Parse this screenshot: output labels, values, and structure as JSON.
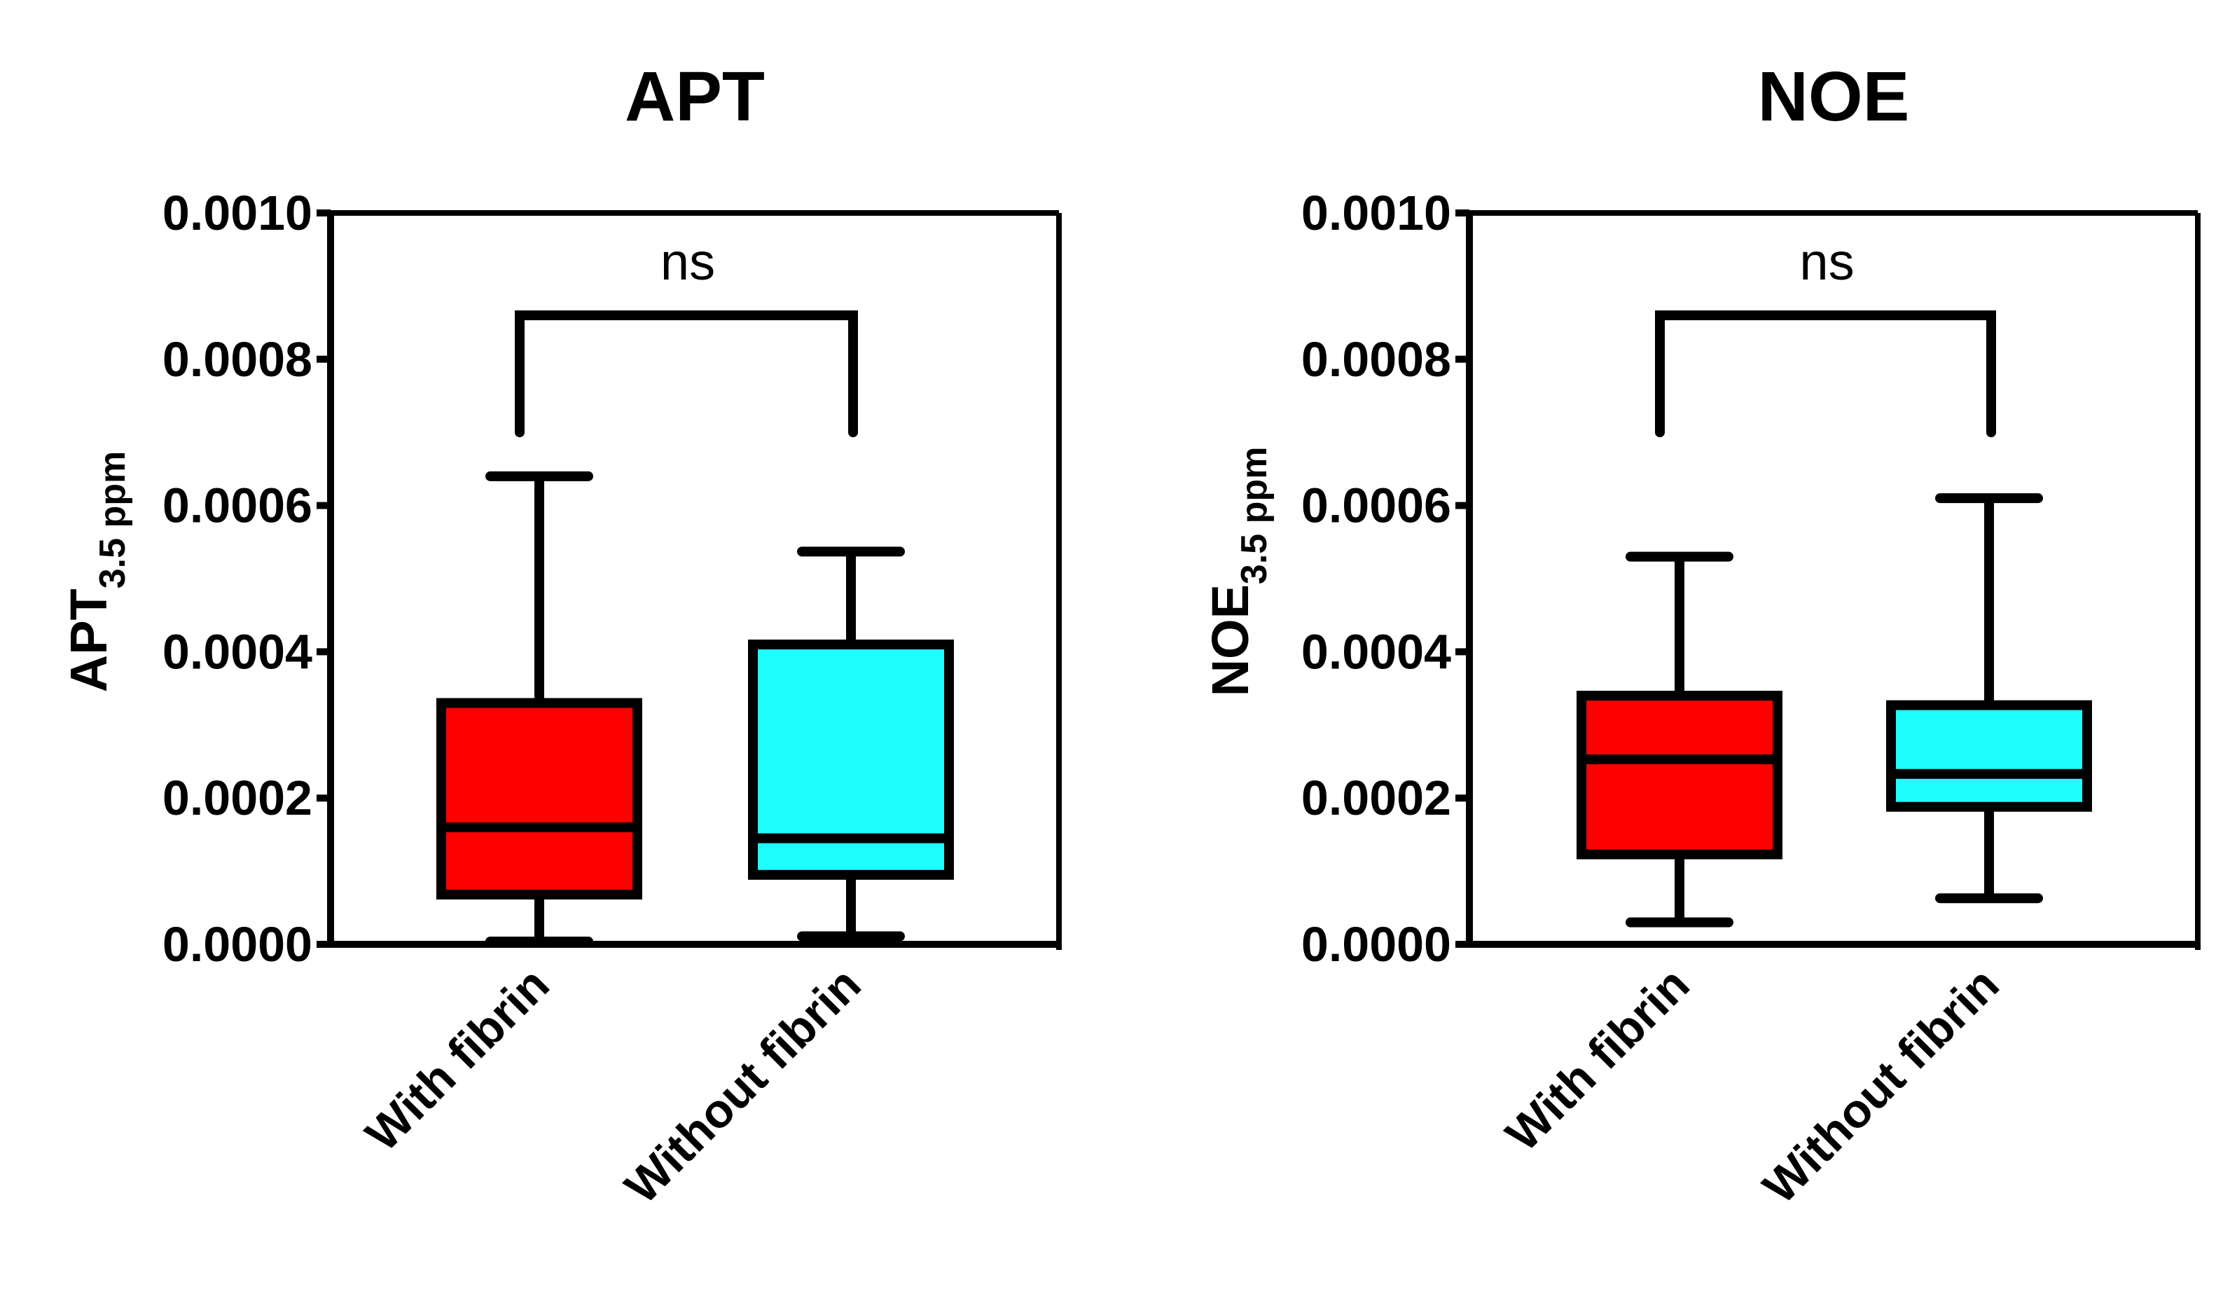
{
  "colors": {
    "with_fibrin": "#ff0000",
    "without_fibrin": "#1ffdfd",
    "stroke": "#000000"
  },
  "chart_data": [
    {
      "type": "box",
      "title": "APT",
      "ylabel_main": "APT",
      "ylabel_sub": "3.5 ppm",
      "ylim": [
        0,
        0.001
      ],
      "yticks": [
        "0.0000",
        "0.0002",
        "0.0004",
        "0.0006",
        "0.0008",
        "0.0010"
      ],
      "categories": [
        "With fibrin",
        "Without fibrin"
      ],
      "series": [
        {
          "category": "With fibrin",
          "min": 3e-06,
          "q1": 6.8e-05,
          "median": 0.00016,
          "q3": 0.00033,
          "max": 0.00064
        },
        {
          "category": "Without fibrin",
          "min": 1.1e-05,
          "q1": 9.5e-05,
          "median": 0.000145,
          "q3": 0.00041,
          "max": 0.000537
        }
      ],
      "significance": {
        "label": "ns",
        "bracket_top": 0.00086,
        "bracket_bottom": 0.0007
      },
      "grid": false
    },
    {
      "type": "box",
      "title": "NOE",
      "ylabel_main": "NOE",
      "ylabel_sub": "3.5 ppm",
      "ylim": [
        0,
        0.001
      ],
      "yticks": [
        "0.0000",
        "0.0002",
        "0.0004",
        "0.0006",
        "0.0008",
        "0.0010"
      ],
      "categories": [
        "With fibrin",
        "Without fibrin"
      ],
      "series": [
        {
          "category": "With fibrin",
          "min": 3e-05,
          "q1": 0.000123,
          "median": 0.000253,
          "q3": 0.00034,
          "max": 0.00053
        },
        {
          "category": "Without fibrin",
          "min": 6.3e-05,
          "q1": 0.000188,
          "median": 0.000233,
          "q3": 0.000327,
          "max": 0.00061
        }
      ],
      "significance": {
        "label": "ns",
        "bracket_top": 0.00086,
        "bracket_bottom": 0.0007
      },
      "grid": false
    }
  ]
}
